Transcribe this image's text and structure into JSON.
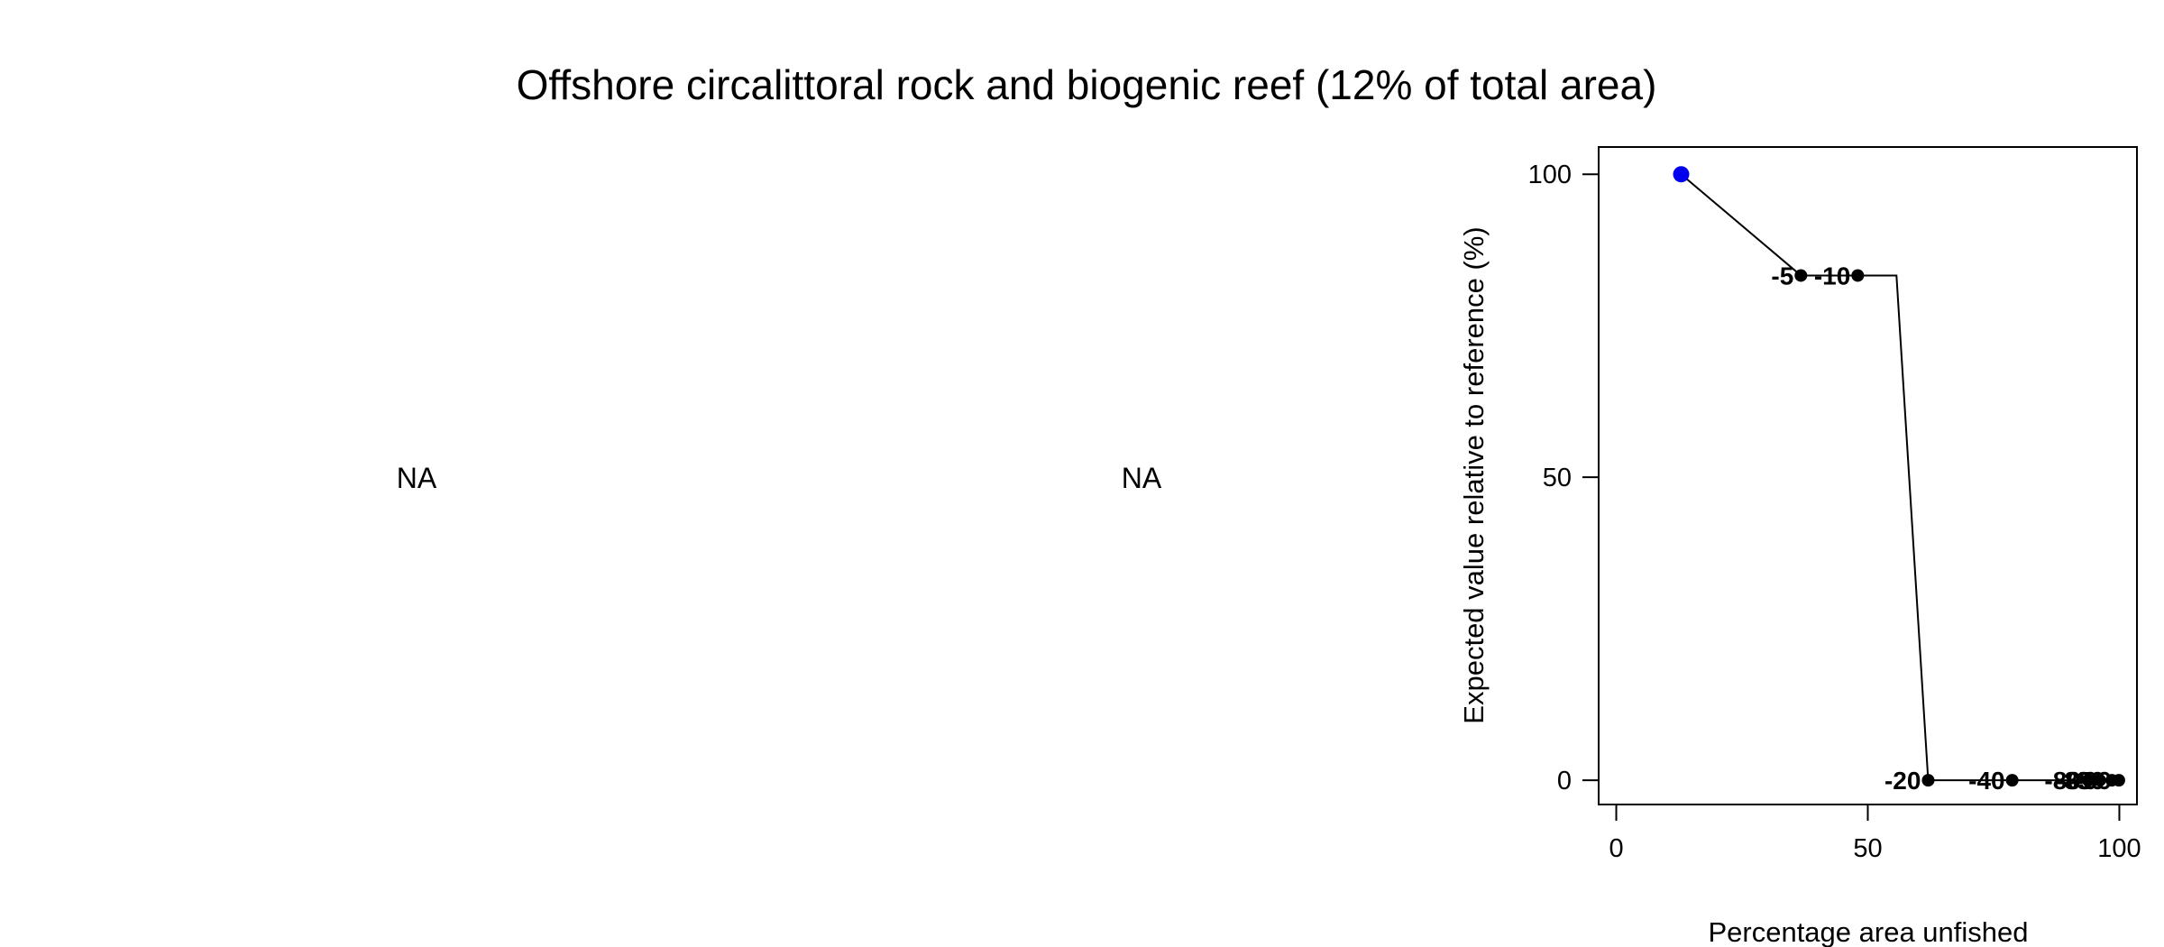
{
  "figure": {
    "title": "Offshore circalittoral rock and biogenic reef (12% of total area)",
    "panels": [
      {
        "text": "NA"
      },
      {
        "text": "NA"
      }
    ]
  },
  "chart_data": {
    "type": "line",
    "title": "",
    "xlabel": "Percentage area unfished",
    "ylabel": "Expected value relative to reference (%)",
    "xlim": [
      -3.5,
      103.5
    ],
    "ylim": [
      -4,
      104.5
    ],
    "xticks": [
      0,
      50,
      100
    ],
    "yticks": [
      0,
      50,
      100
    ],
    "grid": false,
    "legend": "none",
    "line": {
      "color": "#000000",
      "x": [
        12.9,
        36.7,
        48.0,
        55.7,
        62.0,
        78.7,
        93.8,
        96.1,
        98.5,
        99.9
      ],
      "y": [
        100,
        83.3,
        83.3,
        83.3,
        0,
        0,
        0,
        0,
        0,
        0
      ]
    },
    "reference_point": {
      "x": 12.9,
      "y": 100,
      "color": "#0000ee"
    },
    "points": [
      {
        "x": 36.7,
        "y": 83.3,
        "label": "-5"
      },
      {
        "x": 48.0,
        "y": 83.3,
        "label": "-10"
      },
      {
        "x": 62.0,
        "y": 0,
        "label": "-20"
      },
      {
        "x": 78.7,
        "y": 0,
        "label": "-40"
      },
      {
        "x": 93.8,
        "y": 0,
        "label": "-80"
      },
      {
        "x": 96.1,
        "y": 0,
        "label": "-85"
      },
      {
        "x": 98.5,
        "y": 0,
        "label": "-90"
      },
      {
        "x": 99.9,
        "y": 0,
        "label": "-99"
      }
    ],
    "point_color": "#000000"
  }
}
